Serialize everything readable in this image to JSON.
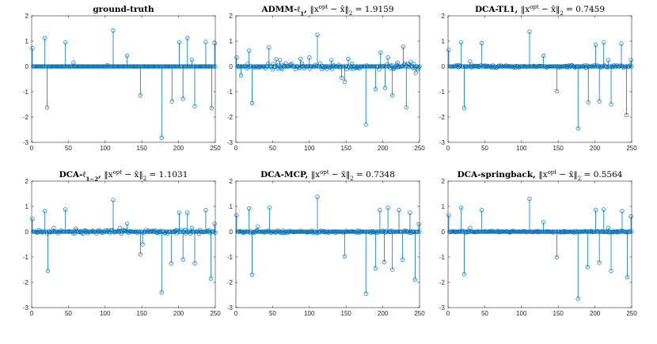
{
  "figure": {
    "colors": {
      "stem": "#0072BD",
      "axis": "#262626",
      "background": "#ffffff"
    }
  },
  "chart_data": [
    {
      "type": "stem",
      "title": "ground-truth",
      "title_parts": [
        {
          "t": "ground-truth",
          "b": true
        }
      ],
      "xlim": [
        0,
        250
      ],
      "ylim": [
        -3,
        2
      ],
      "xticks": [
        0,
        50,
        100,
        150,
        200,
        250
      ],
      "yticks": [
        -3,
        -2,
        -1,
        0,
        1,
        2
      ],
      "n": 250,
      "spikes": [
        [
          1,
          0.72
        ],
        [
          18,
          1.12
        ],
        [
          21,
          -1.62
        ],
        [
          46,
          0.95
        ],
        [
          57,
          0.15
        ],
        [
          103,
          0.05
        ],
        [
          111,
          1.42
        ],
        [
          130,
          0.42
        ],
        [
          148,
          -1.15
        ],
        [
          177,
          -2.82
        ],
        [
          191,
          -1.38
        ],
        [
          201,
          0.95
        ],
        [
          206,
          -1.28
        ],
        [
          212,
          1.12
        ],
        [
          218,
          0.27
        ],
        [
          222,
          -1.57
        ],
        [
          237,
          0.97
        ],
        [
          245,
          -1.65
        ],
        [
          249,
          0.92
        ]
      ],
      "residual": 0
    },
    {
      "type": "stem",
      "title": "ADMM-ℓ₁, ‖xᵒᵖᵗ − x̄‖₂ = 1.9159",
      "title_parts": [
        {
          "t": "ADMM-ℓ",
          "b": true
        },
        {
          "t": "1",
          "b": true,
          "sub": true
        },
        {
          "t": ", ",
          "b": true
        },
        {
          "t": "‖x",
          "b": false
        },
        {
          "t": "opt",
          "b": false,
          "sup": true
        },
        {
          "t": " − x̄‖",
          "b": false
        },
        {
          "t": "2",
          "b": false,
          "sub": true
        },
        {
          "t": " = 1.9159",
          "b": false
        }
      ],
      "xlim": [
        0,
        250
      ],
      "ylim": [
        -3,
        2
      ],
      "xticks": [
        0,
        50,
        100,
        150,
        200,
        250
      ],
      "yticks": [
        -3,
        -2,
        -1,
        0,
        1,
        2
      ],
      "n": 250,
      "spikes": [
        [
          1,
          0.35
        ],
        [
          7,
          -0.35
        ],
        [
          18,
          0.62
        ],
        [
          22,
          -1.45
        ],
        [
          45,
          0.75
        ],
        [
          55,
          0.28
        ],
        [
          60,
          0.25
        ],
        [
          88,
          0.3
        ],
        [
          100,
          0.35
        ],
        [
          111,
          1.25
        ],
        [
          130,
          0.25
        ],
        [
          144,
          -0.45
        ],
        [
          148,
          -0.6
        ],
        [
          153,
          0.3
        ],
        [
          177,
          -2.3
        ],
        [
          190,
          -0.9
        ],
        [
          197,
          0.55
        ],
        [
          203,
          -0.85
        ],
        [
          207,
          0.35
        ],
        [
          213,
          -1.15
        ],
        [
          220,
          0.15
        ],
        [
          228,
          0.78
        ],
        [
          232,
          -1.62
        ],
        [
          238,
          0.18
        ],
        [
          245,
          -0.25
        ]
      ],
      "residual": 0.12
    },
    {
      "type": "stem",
      "title": "DCA-TL1, ‖xᵒᵖᵗ − x̄‖₂ = 0.7459",
      "title_parts": [
        {
          "t": "DCA-TL1, ",
          "b": true
        },
        {
          "t": "‖x",
          "b": false
        },
        {
          "t": "opt",
          "b": false,
          "sup": true
        },
        {
          "t": " − x̄‖",
          "b": false
        },
        {
          "t": "2",
          "b": false,
          "sub": true
        },
        {
          "t": " = 0.7459",
          "b": false
        }
      ],
      "xlim": [
        0,
        250
      ],
      "ylim": [
        -3,
        2
      ],
      "xticks": [
        0,
        50,
        100,
        150,
        200,
        250
      ],
      "yticks": [
        -3,
        -2,
        -1,
        0,
        1,
        2
      ],
      "n": 250,
      "spikes": [
        [
          1,
          0.65
        ],
        [
          18,
          0.95
        ],
        [
          22,
          -1.65
        ],
        [
          30,
          0.2
        ],
        [
          46,
          0.92
        ],
        [
          111,
          1.38
        ],
        [
          130,
          0.42
        ],
        [
          148,
          -0.98
        ],
        [
          177,
          -2.45
        ],
        [
          191,
          -1.42
        ],
        [
          201,
          0.85
        ],
        [
          206,
          -1.38
        ],
        [
          212,
          0.95
        ],
        [
          218,
          0.25
        ],
        [
          222,
          -1.5
        ],
        [
          236,
          0.9
        ],
        [
          243,
          -1.92
        ],
        [
          249,
          0.25
        ]
      ],
      "residual": 0.05
    },
    {
      "type": "stem",
      "title": "DCA-ℓ₁₋₂, ‖xᵒᵖᵗ − x̄‖₂ = 1.1031",
      "title_parts": [
        {
          "t": "DCA-ℓ",
          "b": true
        },
        {
          "t": "1−2",
          "b": true,
          "sub": true
        },
        {
          "t": ", ",
          "b": true
        },
        {
          "t": "‖x",
          "b": false
        },
        {
          "t": "opt",
          "b": false,
          "sup": true
        },
        {
          "t": " − x̄‖",
          "b": false
        },
        {
          "t": "2",
          "b": false,
          "sub": true
        },
        {
          "t": " = 1.1031",
          "b": false
        }
      ],
      "xlim": [
        0,
        250
      ],
      "ylim": [
        -3,
        2
      ],
      "xticks": [
        0,
        50,
        100,
        150,
        200,
        250
      ],
      "yticks": [
        -3,
        -2,
        -1,
        0,
        1,
        2
      ],
      "n": 250,
      "spikes": [
        [
          1,
          0.5
        ],
        [
          18,
          0.82
        ],
        [
          22,
          -1.55
        ],
        [
          30,
          0.15
        ],
        [
          46,
          0.88
        ],
        [
          60,
          0.12
        ],
        [
          111,
          1.25
        ],
        [
          120,
          0.15
        ],
        [
          130,
          0.32
        ],
        [
          148,
          -0.9
        ],
        [
          151,
          -0.5
        ],
        [
          177,
          -2.4
        ],
        [
          190,
          -1.25
        ],
        [
          201,
          0.75
        ],
        [
          206,
          -1.1
        ],
        [
          212,
          0.75
        ],
        [
          218,
          0.15
        ],
        [
          222,
          -1.25
        ],
        [
          237,
          0.85
        ],
        [
          244,
          -1.85
        ],
        [
          249,
          0.32
        ]
      ],
      "residual": 0.08
    },
    {
      "type": "stem",
      "title": "DCA-MCP, ‖xᵒᵖᵗ − x̄‖₂ = 0.7348",
      "title_parts": [
        {
          "t": "DCA-MCP, ",
          "b": true
        },
        {
          "t": "‖x",
          "b": false
        },
        {
          "t": "opt",
          "b": false,
          "sup": true
        },
        {
          "t": " − x̄‖",
          "b": false
        },
        {
          "t": "2",
          "b": false,
          "sub": true
        },
        {
          "t": " = 0.7348",
          "b": false
        }
      ],
      "xlim": [
        0,
        250
      ],
      "ylim": [
        -3,
        2
      ],
      "xticks": [
        0,
        50,
        100,
        150,
        200,
        250
      ],
      "yticks": [
        -3,
        -2,
        -1,
        0,
        1,
        2
      ],
      "n": 250,
      "spikes": [
        [
          1,
          0.65
        ],
        [
          18,
          0.92
        ],
        [
          22,
          -1.7
        ],
        [
          30,
          0.2
        ],
        [
          46,
          0.95
        ],
        [
          111,
          1.38
        ],
        [
          148,
          -0.98
        ],
        [
          177,
          -2.45
        ],
        [
          190,
          -1.45
        ],
        [
          196,
          0.85
        ],
        [
          202,
          -1.2
        ],
        [
          207,
          0.95
        ],
        [
          213,
          -1.5
        ],
        [
          222,
          0.85
        ],
        [
          227,
          -1.1
        ],
        [
          237,
          0.75
        ],
        [
          244,
          -1.9
        ],
        [
          249,
          0.3
        ]
      ],
      "residual": 0.05
    },
    {
      "type": "stem",
      "title": "DCA-springback, ‖xᵒᵖᵗ − x̄‖₂ = 0.5564",
      "title_parts": [
        {
          "t": "DCA-springback, ",
          "b": true
        },
        {
          "t": "‖x",
          "b": false
        },
        {
          "t": "opt",
          "b": false,
          "sup": true
        },
        {
          "t": " − x̄‖",
          "b": false
        },
        {
          "t": "2",
          "b": false,
          "sub": true
        },
        {
          "t": " = 0.5564",
          "b": false
        }
      ],
      "xlim": [
        0,
        250
      ],
      "ylim": [
        -3,
        2
      ],
      "xticks": [
        0,
        50,
        100,
        150,
        200,
        250
      ],
      "yticks": [
        -3,
        -2,
        -1,
        0,
        1,
        2
      ],
      "n": 250,
      "spikes": [
        [
          1,
          0.65
        ],
        [
          18,
          0.95
        ],
        [
          22,
          -1.68
        ],
        [
          30,
          0.15
        ],
        [
          46,
          0.85
        ],
        [
          111,
          1.3
        ],
        [
          130,
          0.38
        ],
        [
          148,
          -1.02
        ],
        [
          177,
          -2.65
        ],
        [
          190,
          -1.4
        ],
        [
          201,
          0.85
        ],
        [
          206,
          -1.22
        ],
        [
          212,
          0.88
        ],
        [
          218,
          0.15
        ],
        [
          222,
          -1.55
        ],
        [
          237,
          0.82
        ],
        [
          244,
          -1.8
        ],
        [
          249,
          0.6
        ]
      ],
      "residual": 0.03
    }
  ]
}
